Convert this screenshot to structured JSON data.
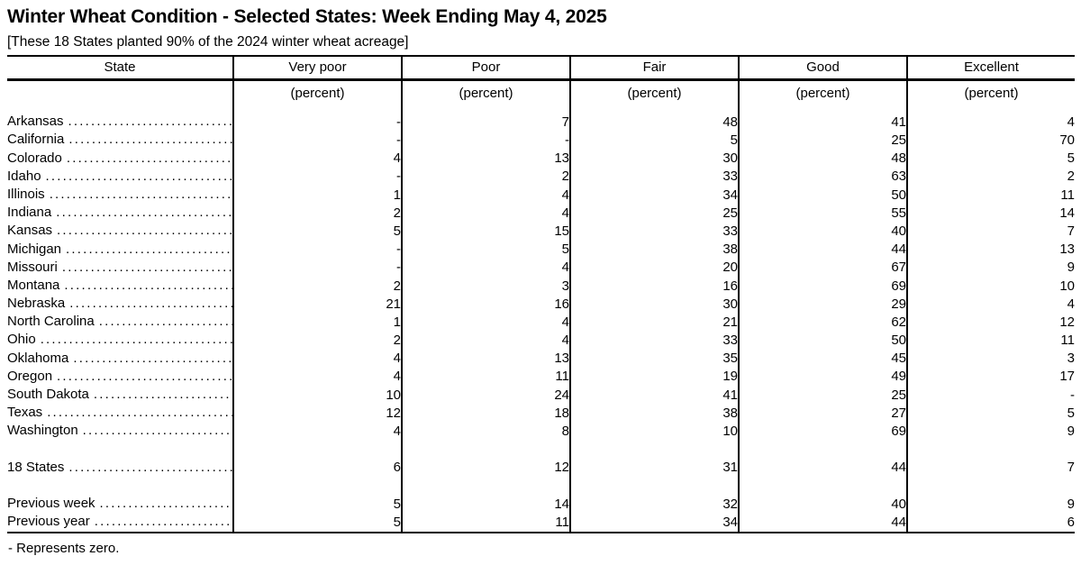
{
  "page": {
    "title": "Winter Wheat Condition - Selected States: Week Ending May 4, 2025",
    "subtitle": "[These 18 States planted 90% of the 2024 winter wheat acreage]",
    "footnote": "- Represents zero."
  },
  "table": {
    "columns": [
      "State",
      "Very poor",
      "Poor",
      "Fair",
      "Good",
      "Excellent"
    ],
    "unit_label": "(percent)",
    "sections": [
      {
        "name": "states",
        "rows": [
          {
            "label": "Arkansas",
            "values": [
              "-",
              "7",
              "48",
              "41",
              "4"
            ]
          },
          {
            "label": "California",
            "values": [
              "-",
              "-",
              "5",
              "25",
              "70"
            ]
          },
          {
            "label": "Colorado",
            "values": [
              "4",
              "13",
              "30",
              "48",
              "5"
            ]
          },
          {
            "label": "Idaho",
            "values": [
              "-",
              "2",
              "33",
              "63",
              "2"
            ]
          },
          {
            "label": "Illinois",
            "values": [
              "1",
              "4",
              "34",
              "50",
              "11"
            ]
          },
          {
            "label": "Indiana",
            "values": [
              "2",
              "4",
              "25",
              "55",
              "14"
            ]
          },
          {
            "label": "Kansas",
            "values": [
              "5",
              "15",
              "33",
              "40",
              "7"
            ]
          },
          {
            "label": "Michigan",
            "values": [
              "-",
              "5",
              "38",
              "44",
              "13"
            ]
          },
          {
            "label": "Missouri",
            "values": [
              "-",
              "4",
              "20",
              "67",
              "9"
            ]
          },
          {
            "label": "Montana",
            "values": [
              "2",
              "3",
              "16",
              "69",
              "10"
            ]
          },
          {
            "label": "Nebraska",
            "values": [
              "21",
              "16",
              "30",
              "29",
              "4"
            ]
          },
          {
            "label": "North Carolina",
            "values": [
              "1",
              "4",
              "21",
              "62",
              "12"
            ]
          },
          {
            "label": "Ohio",
            "values": [
              "2",
              "4",
              "33",
              "50",
              "11"
            ]
          },
          {
            "label": "Oklahoma",
            "values": [
              "4",
              "13",
              "35",
              "45",
              "3"
            ]
          },
          {
            "label": "Oregon",
            "values": [
              "4",
              "11",
              "19",
              "49",
              "17"
            ]
          },
          {
            "label": "South Dakota",
            "values": [
              "10",
              "24",
              "41",
              "25",
              "-"
            ]
          },
          {
            "label": "Texas",
            "values": [
              "12",
              "18",
              "38",
              "27",
              "5"
            ]
          },
          {
            "label": "Washington",
            "values": [
              "4",
              "8",
              "10",
              "69",
              "9"
            ]
          }
        ]
      },
      {
        "name": "total",
        "rows": [
          {
            "label": "18 States",
            "values": [
              "6",
              "12",
              "31",
              "44",
              "7"
            ]
          }
        ]
      },
      {
        "name": "comparison",
        "rows": [
          {
            "label": "Previous week",
            "values": [
              "5",
              "14",
              "32",
              "40",
              "9"
            ]
          },
          {
            "label": "Previous year",
            "values": [
              "5",
              "11",
              "34",
              "44",
              "6"
            ]
          }
        ]
      }
    ]
  }
}
